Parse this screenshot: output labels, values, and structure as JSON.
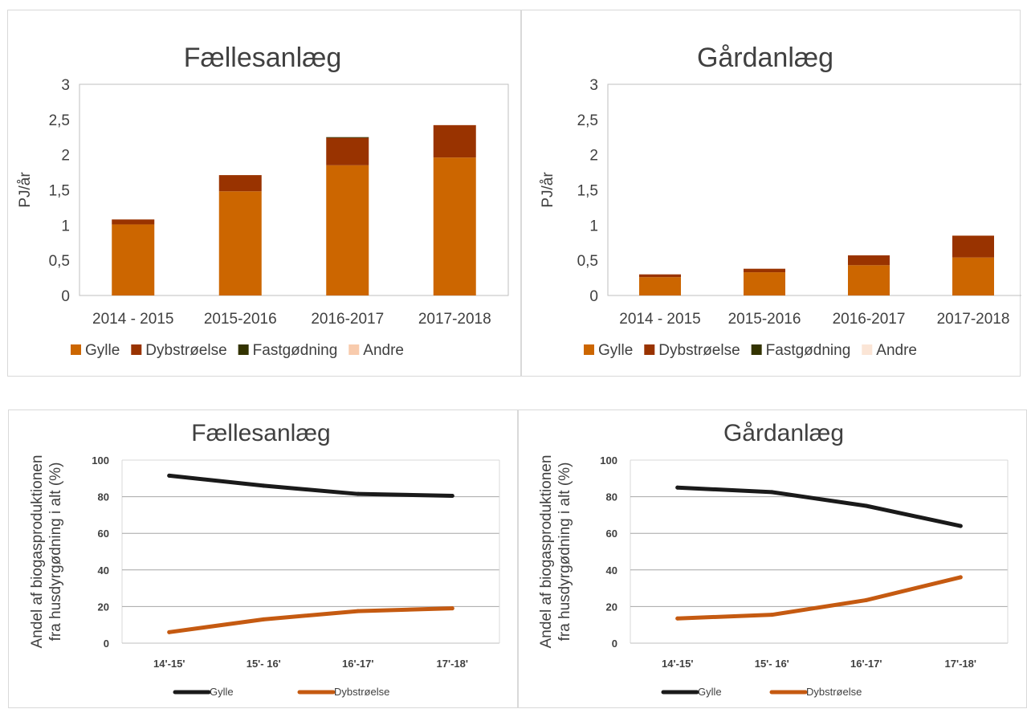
{
  "chart_data": [
    {
      "type": "bar",
      "stacked": true,
      "title": "Fællesanlæg",
      "xlabel": "",
      "ylabel": "PJ/år",
      "ylim": [
        0,
        3
      ],
      "yticks": [
        "0",
        "0,5",
        "1",
        "1,5",
        "2",
        "2,5",
        "3"
      ],
      "categories": [
        "2014 - 2015",
        "2015-2016",
        "2016-2017",
        "2017-2018"
      ],
      "series": [
        {
          "name": "Gylle",
          "values": [
            1.01,
            1.48,
            1.85,
            1.96
          ],
          "color": "#cc6600"
        },
        {
          "name": "Dybstrøelse",
          "values": [
            0.07,
            0.23,
            0.39,
            0.46
          ],
          "color": "#993300"
        },
        {
          "name": "Fastgødning",
          "values": [
            0,
            0,
            0.01,
            0
          ],
          "color": "#333300"
        },
        {
          "name": "Andre",
          "values": [
            0,
            0,
            0,
            0
          ],
          "color": "#f8cbad"
        }
      ],
      "grid": false,
      "legend": "bottom"
    },
    {
      "type": "bar",
      "stacked": true,
      "title": "Gårdanlæg",
      "xlabel": "",
      "ylabel": "PJ/år",
      "ylim": [
        0,
        3
      ],
      "yticks": [
        "0",
        "0,5",
        "1",
        "1,5",
        "2",
        "2,5",
        "3"
      ],
      "categories": [
        "2014 - 2015",
        "2015-2016",
        "2016-2017",
        "2017-2018"
      ],
      "series": [
        {
          "name": "Gylle",
          "values": [
            0.26,
            0.33,
            0.43,
            0.54
          ],
          "color": "#cc6600"
        },
        {
          "name": "Dybstrøelse",
          "values": [
            0.04,
            0.05,
            0.14,
            0.31
          ],
          "color": "#993300"
        },
        {
          "name": "Fastgødning",
          "values": [
            0,
            0,
            0,
            0
          ],
          "color": "#333300"
        },
        {
          "name": "Andre",
          "values": [
            0,
            0,
            0,
            0
          ],
          "color": "#fbe5d6"
        }
      ],
      "grid": false,
      "legend": "bottom"
    },
    {
      "type": "line",
      "title": "Fællesanlæg",
      "xlabel": "",
      "ylabel": "Andel af biogasproduktionen fra husdyrgødning i alt (%)",
      "ylabel_lines": [
        "Andel af biogasproduktionen",
        "fra husdyrgødning i alt (%)"
      ],
      "ylim": [
        0,
        100
      ],
      "yticks": [
        "0",
        "20",
        "40",
        "60",
        "80",
        "100"
      ],
      "categories": [
        "14'-15'",
        "15'- 16'",
        "16'-17'",
        "17'-18'"
      ],
      "series": [
        {
          "name": "Gylle",
          "values": [
            91.5,
            86,
            81.5,
            80.5
          ],
          "color": "#1a1a1a"
        },
        {
          "name": "Dybstrøelse",
          "values": [
            6,
            13,
            17.5,
            19
          ],
          "color": "#c55a11"
        }
      ],
      "grid": true,
      "legend": "bottom"
    },
    {
      "type": "line",
      "title": "Gårdanlæg",
      "xlabel": "",
      "ylabel": "Andel af biogasproduktionen fra husdyrgødning i alt (%)",
      "ylabel_lines": [
        "Andel af biogasproduktionen",
        "fra husdyrgødning i alt (%)"
      ],
      "ylim": [
        0,
        100
      ],
      "yticks": [
        "0",
        "20",
        "40",
        "60",
        "80",
        "100"
      ],
      "categories": [
        "14'-15'",
        "15'- 16'",
        "16'-17'",
        "17'-18'"
      ],
      "series": [
        {
          "name": "Gylle",
          "values": [
            85,
            82.5,
            75,
            64
          ],
          "color": "#1a1a1a"
        },
        {
          "name": "Dybstrøelse",
          "values": [
            13.5,
            15.5,
            23.5,
            36
          ],
          "color": "#c55a11"
        }
      ],
      "grid": true,
      "legend": "bottom"
    }
  ]
}
